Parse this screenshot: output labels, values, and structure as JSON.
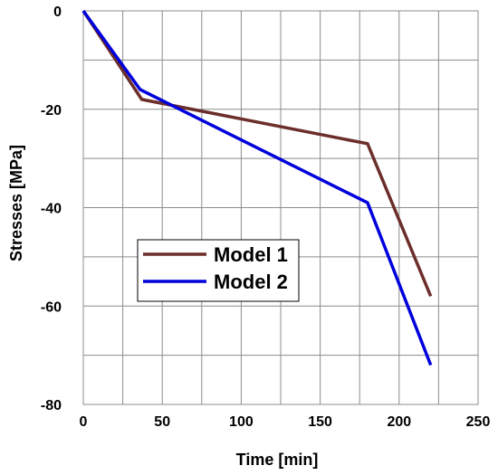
{
  "chart_data": {
    "type": "line",
    "title": "",
    "xlabel": "Time [min]",
    "ylabel": "Stresses [MPa]",
    "xlim": [
      0,
      250
    ],
    "ylim": [
      -80,
      0
    ],
    "x_ticks": [
      0,
      50,
      100,
      150,
      200,
      250
    ],
    "y_ticks": [
      0,
      -20,
      -40,
      -60,
      -80
    ],
    "grid": true,
    "legend_position": "center-left",
    "series": [
      {
        "name": "Model 1",
        "color": "#6b2e2a",
        "x": [
          0,
          37,
          180,
          220
        ],
        "y": [
          0,
          -18,
          -27,
          -58
        ]
      },
      {
        "name": "Model 2",
        "color": "#0000dd",
        "x": [
          0,
          36,
          180,
          220
        ],
        "y": [
          0,
          -16,
          -39,
          -72
        ]
      }
    ]
  }
}
